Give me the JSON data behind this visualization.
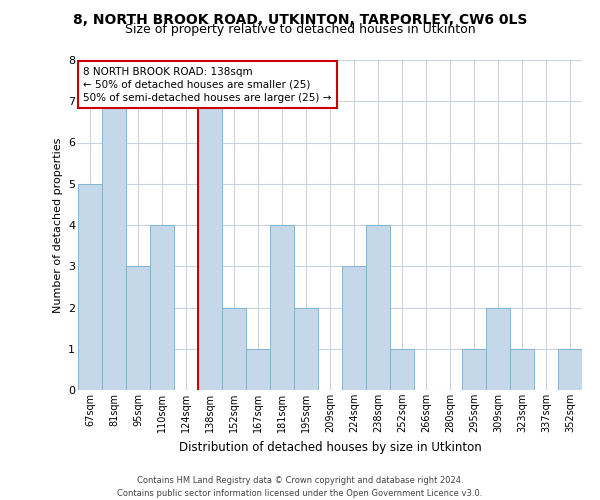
{
  "title": "8, NORTH BROOK ROAD, UTKINTON, TARPORLEY, CW6 0LS",
  "subtitle": "Size of property relative to detached houses in Utkinton",
  "xlabel": "Distribution of detached houses by size in Utkinton",
  "ylabel": "Number of detached properties",
  "bar_labels": [
    "67sqm",
    "81sqm",
    "95sqm",
    "110sqm",
    "124sqm",
    "138sqm",
    "152sqm",
    "167sqm",
    "181sqm",
    "195sqm",
    "209sqm",
    "224sqm",
    "238sqm",
    "252sqm",
    "266sqm",
    "280sqm",
    "295sqm",
    "309sqm",
    "323sqm",
    "337sqm",
    "352sqm"
  ],
  "bar_values": [
    5,
    7,
    3,
    4,
    0,
    7,
    2,
    1,
    4,
    2,
    0,
    3,
    4,
    1,
    0,
    0,
    1,
    2,
    1,
    0,
    1
  ],
  "bar_color": "#c5d8ea",
  "bar_edge_color": "#7aaecf",
  "annotation_title": "8 NORTH BROOK ROAD: 138sqm",
  "annotation_line1": "← 50% of detached houses are smaller (25)",
  "annotation_line2": "50% of semi-detached houses are larger (25) →",
  "annotation_box_color": "#ffffff",
  "annotation_box_edge": "#cc0000",
  "highlight_line_color": "#cc0000",
  "highlight_bar_index": 5,
  "ylim": [
    0,
    8
  ],
  "yticks": [
    0,
    1,
    2,
    3,
    4,
    5,
    6,
    7,
    8
  ],
  "footer_line1": "Contains HM Land Registry data © Crown copyright and database right 2024.",
  "footer_line2": "Contains public sector information licensed under the Open Government Licence v3.0.",
  "background_color": "#ffffff",
  "grid_color": "#c8d4de",
  "title_fontsize": 10,
  "subtitle_fontsize": 9
}
